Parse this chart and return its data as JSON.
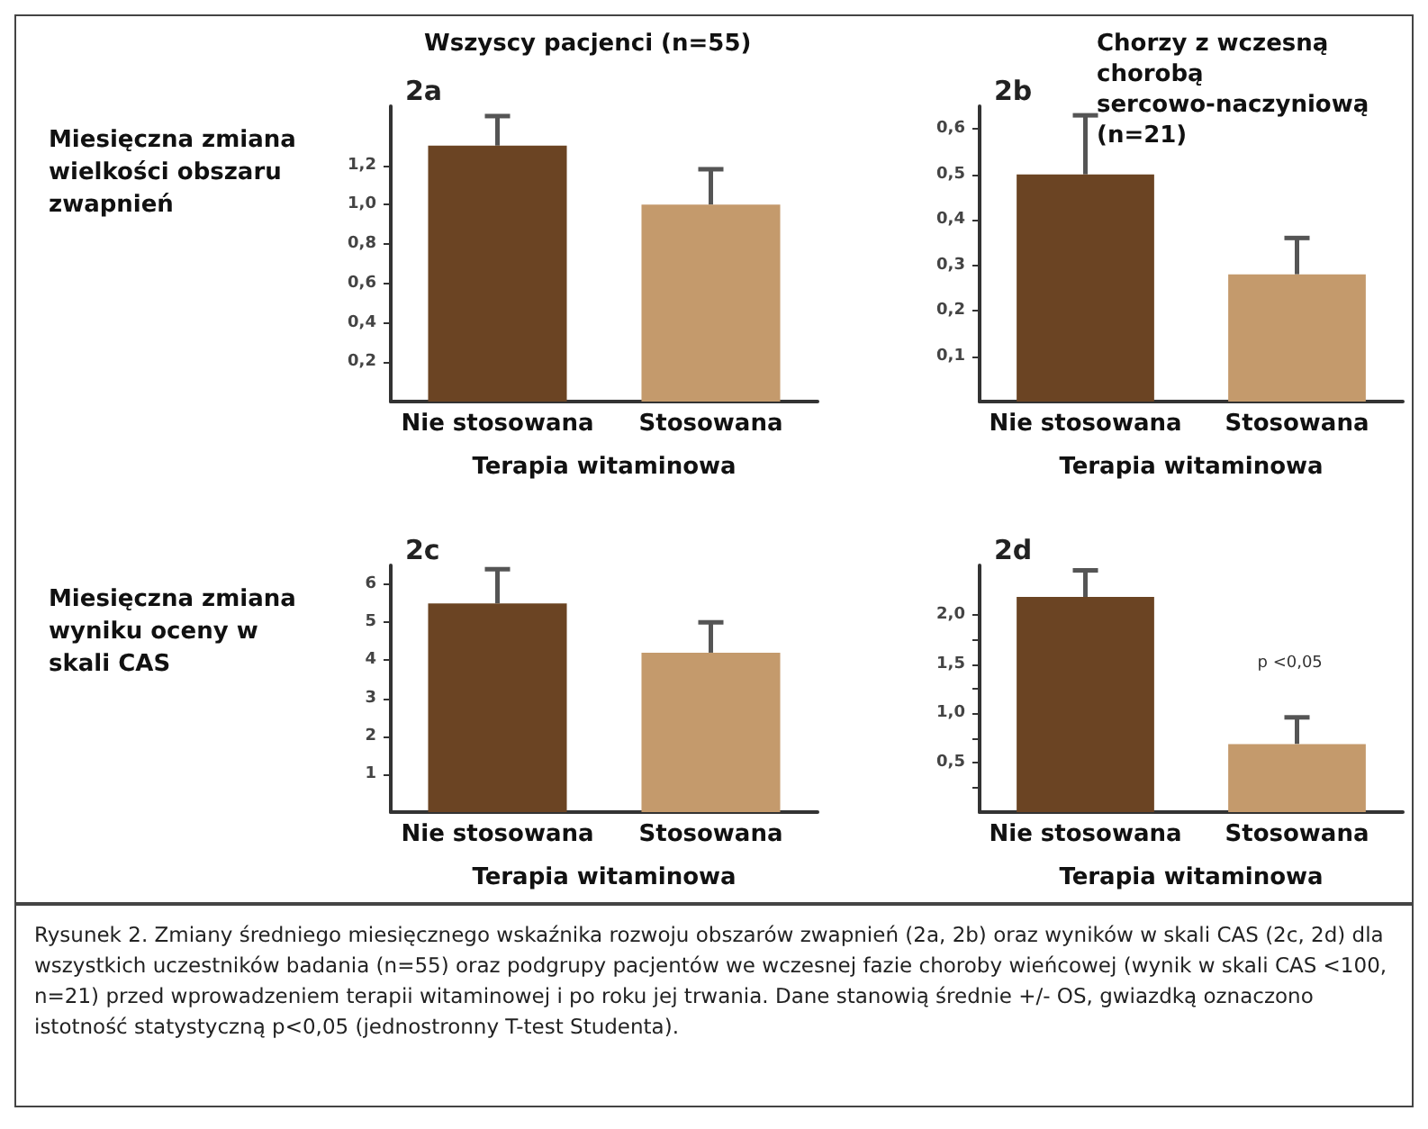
{
  "chart_data": [
    {
      "type": "bar",
      "title": "Wszyscy pacjenci (n=55)",
      "ylabel": "Miesięczna zmiana wielkości obszaru zwapnień",
      "xlabel": "Terapia witaminowa",
      "categories": [
        "Nie stosowana",
        "Stosowana"
      ],
      "values": [
        1.3,
        1.0
      ],
      "errors": [
        0.15,
        0.18
      ],
      "colors": [
        "#6b4423",
        "#c49a6c"
      ],
      "ylim": [
        0,
        1.5
      ],
      "yticks": [
        {
          "value": 0.2,
          "label": "0,2"
        },
        {
          "value": 0.4,
          "label": "0,4"
        },
        {
          "value": 0.6,
          "label": "0,6"
        },
        {
          "value": 0.8,
          "label": "0,8"
        },
        {
          "value": 1.0,
          "label": "1,0"
        },
        {
          "value": 1.2,
          "label": "1,2"
        }
      ],
      "annotations": [
        "2a"
      ],
      "grid": false
    },
    {
      "type": "bar",
      "title": "Chorzy z wczesną chorobą sercowo-naczyniową (n=21)",
      "xlabel": "Terapia witaminowa",
      "categories": [
        "Nie stosowana",
        "Stosowana"
      ],
      "values": [
        0.5,
        0.28
      ],
      "errors": [
        0.13,
        0.08
      ],
      "colors": [
        "#6b4423",
        "#c49a6c"
      ],
      "ylim": [
        0,
        0.65
      ],
      "yticks": [
        {
          "value": 0.1,
          "label": "0,1"
        },
        {
          "value": 0.2,
          "label": "0,2"
        },
        {
          "value": 0.3,
          "label": "0,3"
        },
        {
          "value": 0.4,
          "label": "0,4"
        },
        {
          "value": 0.5,
          "label": "0,5"
        },
        {
          "value": 0.6,
          "label": "0,6"
        }
      ],
      "annotations": [
        "2b"
      ],
      "grid": false
    },
    {
      "type": "bar",
      "ylabel": "Miesięczna zmiana wyniku oceny w skali CAS",
      "xlabel": "Terapia witaminowa",
      "categories": [
        "Nie stosowana",
        "Stosowana"
      ],
      "values": [
        5.5,
        4.2
      ],
      "errors": [
        0.9,
        0.8
      ],
      "colors": [
        "#6b4423",
        "#c49a6c"
      ],
      "ylim": [
        0,
        6.5
      ],
      "yticks": [
        1,
        2,
        3,
        4,
        5,
        6
      ],
      "annotations": [
        "2c"
      ],
      "grid": false
    },
    {
      "type": "bar",
      "xlabel": "Terapia witaminowa",
      "categories": [
        "Nie stosowana",
        "Stosowana"
      ],
      "values": [
        2.18,
        0.69
      ],
      "errors": [
        0.27,
        0.27
      ],
      "colors": [
        "#6b4423",
        "#c49a6c"
      ],
      "ylim": [
        0,
        2.5
      ],
      "yticks": [
        {
          "value": 0.25,
          "label": null
        },
        {
          "value": 0.5,
          "label": "0,5"
        },
        {
          "value": 0.75,
          "label": null
        },
        {
          "value": 1.0,
          "label": "1,0"
        },
        {
          "value": 1.25,
          "label": null
        },
        {
          "value": 1.5,
          "label": "1,5"
        },
        {
          "value": 1.75,
          "label": null
        },
        {
          "value": 2.0,
          "label": "2,0"
        }
      ],
      "annotations": [
        "2d",
        "p <0,05",
        "Rysunek 2. Zmiany średniego miesięcznego wskaźnika rozwoju obszarów zwapnień (2a, 2b) oraz wyników w skali CAS (2c, 2d) dla wszystkich uczestników badania (n=55) oraz podgrupy pacjentów we wczesnej fazie choroby wieńcowej (wynik w skali CAS <100, n=21) przed wprowadzeniem terapii witaminowej i po roku jej trwania. Dane stanowią średnie +/- OS, gwiazdką oznaczono istotność statystyczną p<0,05 (jednostronny T-test Studenta)."
      ],
      "grid": false
    }
  ]
}
